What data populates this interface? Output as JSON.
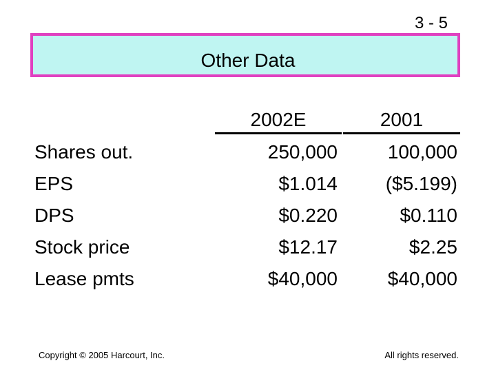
{
  "slide_number": "3 - 5",
  "title": "Other Data",
  "columns": [
    "2002E",
    "2001"
  ],
  "rows": [
    {
      "label": "Shares out.",
      "values": [
        "250,000",
        "100,000"
      ]
    },
    {
      "label": "EPS",
      "values": [
        "$1.014",
        "($5.199)"
      ]
    },
    {
      "label": "DPS",
      "values": [
        "$0.220",
        "$0.110"
      ]
    },
    {
      "label": "Stock price",
      "values": [
        "$12.17",
        "$2.25"
      ]
    },
    {
      "label": "Lease pmts",
      "values": [
        "$40,000",
        "$40,000"
      ]
    }
  ],
  "footer": {
    "left": "Copyright © 2005 Harcourt, Inc.",
    "right": "All rights reserved."
  }
}
